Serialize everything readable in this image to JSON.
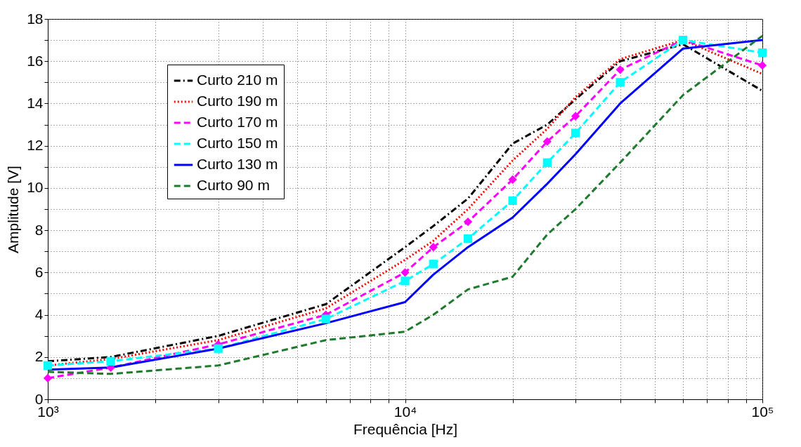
{
  "chart_data": {
    "type": "line",
    "xlabel": "Frequência [Hz]",
    "ylabel": "Amplitude [V]",
    "x": [
      1000,
      1500,
      3000,
      6000,
      10000,
      12000,
      15000,
      20000,
      25000,
      30000,
      40000,
      60000,
      100000
    ],
    "series": [
      {
        "name": "Curto 210 m",
        "color": "#000000",
        "line_style": "dashdot",
        "values": [
          1.8,
          2.0,
          3.0,
          4.5,
          7.2,
          8.2,
          9.5,
          12.1,
          13.0,
          14.2,
          16.0,
          16.8,
          14.6
        ]
      },
      {
        "name": "Curto 190 m",
        "color": "#ff0000",
        "line_style": "dotted",
        "values": [
          1.6,
          1.9,
          2.8,
          4.3,
          6.6,
          7.5,
          9.0,
          11.3,
          12.8,
          14.3,
          16.1,
          17.0,
          15.4
        ]
      },
      {
        "name": "Curto 170 m",
        "color": "#ff00ff",
        "line_style": "dashed",
        "marker": "diamond",
        "values": [
          1.0,
          1.5,
          2.6,
          4.0,
          6.0,
          7.2,
          8.4,
          10.4,
          12.2,
          13.4,
          15.6,
          17.0,
          15.8
        ]
      },
      {
        "name": "Curto 150 m",
        "color": "#00ffff",
        "line_style": "dashed",
        "marker": "square",
        "values": [
          1.6,
          1.8,
          2.4,
          3.8,
          5.6,
          6.4,
          7.6,
          9.4,
          11.2,
          12.6,
          15.0,
          17.0,
          16.4
        ]
      },
      {
        "name": "Curto 130 m",
        "color": "#0000ff",
        "line_style": "solid",
        "values": [
          1.4,
          1.5,
          2.4,
          3.6,
          4.6,
          5.9,
          7.2,
          8.6,
          10.2,
          11.6,
          14.0,
          16.6,
          17.0
        ]
      },
      {
        "name": "Curto 90 m",
        "color": "#1f7a2e",
        "line_style": "dashed",
        "values": [
          1.3,
          1.2,
          1.6,
          2.8,
          3.2,
          4.0,
          5.2,
          5.8,
          7.8,
          9.0,
          11.2,
          14.4,
          17.2
        ]
      }
    ],
    "log": "x",
    "xlim": [
      1000,
      100000
    ],
    "xticks": [
      {
        "value": 1000,
        "label": "10³"
      },
      {
        "value": 2000,
        "label": null
      },
      {
        "value": 3000,
        "label": null
      },
      {
        "value": 4000,
        "label": null
      },
      {
        "value": 5000,
        "label": null
      },
      {
        "value": 6000,
        "label": null
      },
      {
        "value": 7000,
        "label": null
      },
      {
        "value": 8000,
        "label": null
      },
      {
        "value": 9000,
        "label": null
      },
      {
        "value": 10000,
        "label": "10⁴"
      },
      {
        "value": 20000,
        "label": null
      },
      {
        "value": 30000,
        "label": null
      },
      {
        "value": 40000,
        "label": null
      },
      {
        "value": 50000,
        "label": null
      },
      {
        "value": 60000,
        "label": null
      },
      {
        "value": 70000,
        "label": null
      },
      {
        "value": 80000,
        "label": null
      },
      {
        "value": 90000,
        "label": null
      },
      {
        "value": 100000,
        "label": "10⁵"
      }
    ],
    "ylim": [
      0,
      18
    ],
    "yticks": [
      0,
      {
        "value": 1,
        "label": null
      },
      2,
      {
        "value": 3,
        "label": null
      },
      4,
      {
        "value": 5,
        "label": null
      },
      6,
      {
        "value": 7,
        "label": null
      },
      8,
      {
        "value": 9,
        "label": null
      },
      10,
      {
        "value": 11,
        "label": null
      },
      12,
      {
        "value": 13,
        "label": null
      },
      14,
      {
        "value": 15,
        "label": null
      },
      16,
      {
        "value": 17,
        "label": null
      },
      18
    ],
    "grid": true,
    "legend": "top left"
  }
}
